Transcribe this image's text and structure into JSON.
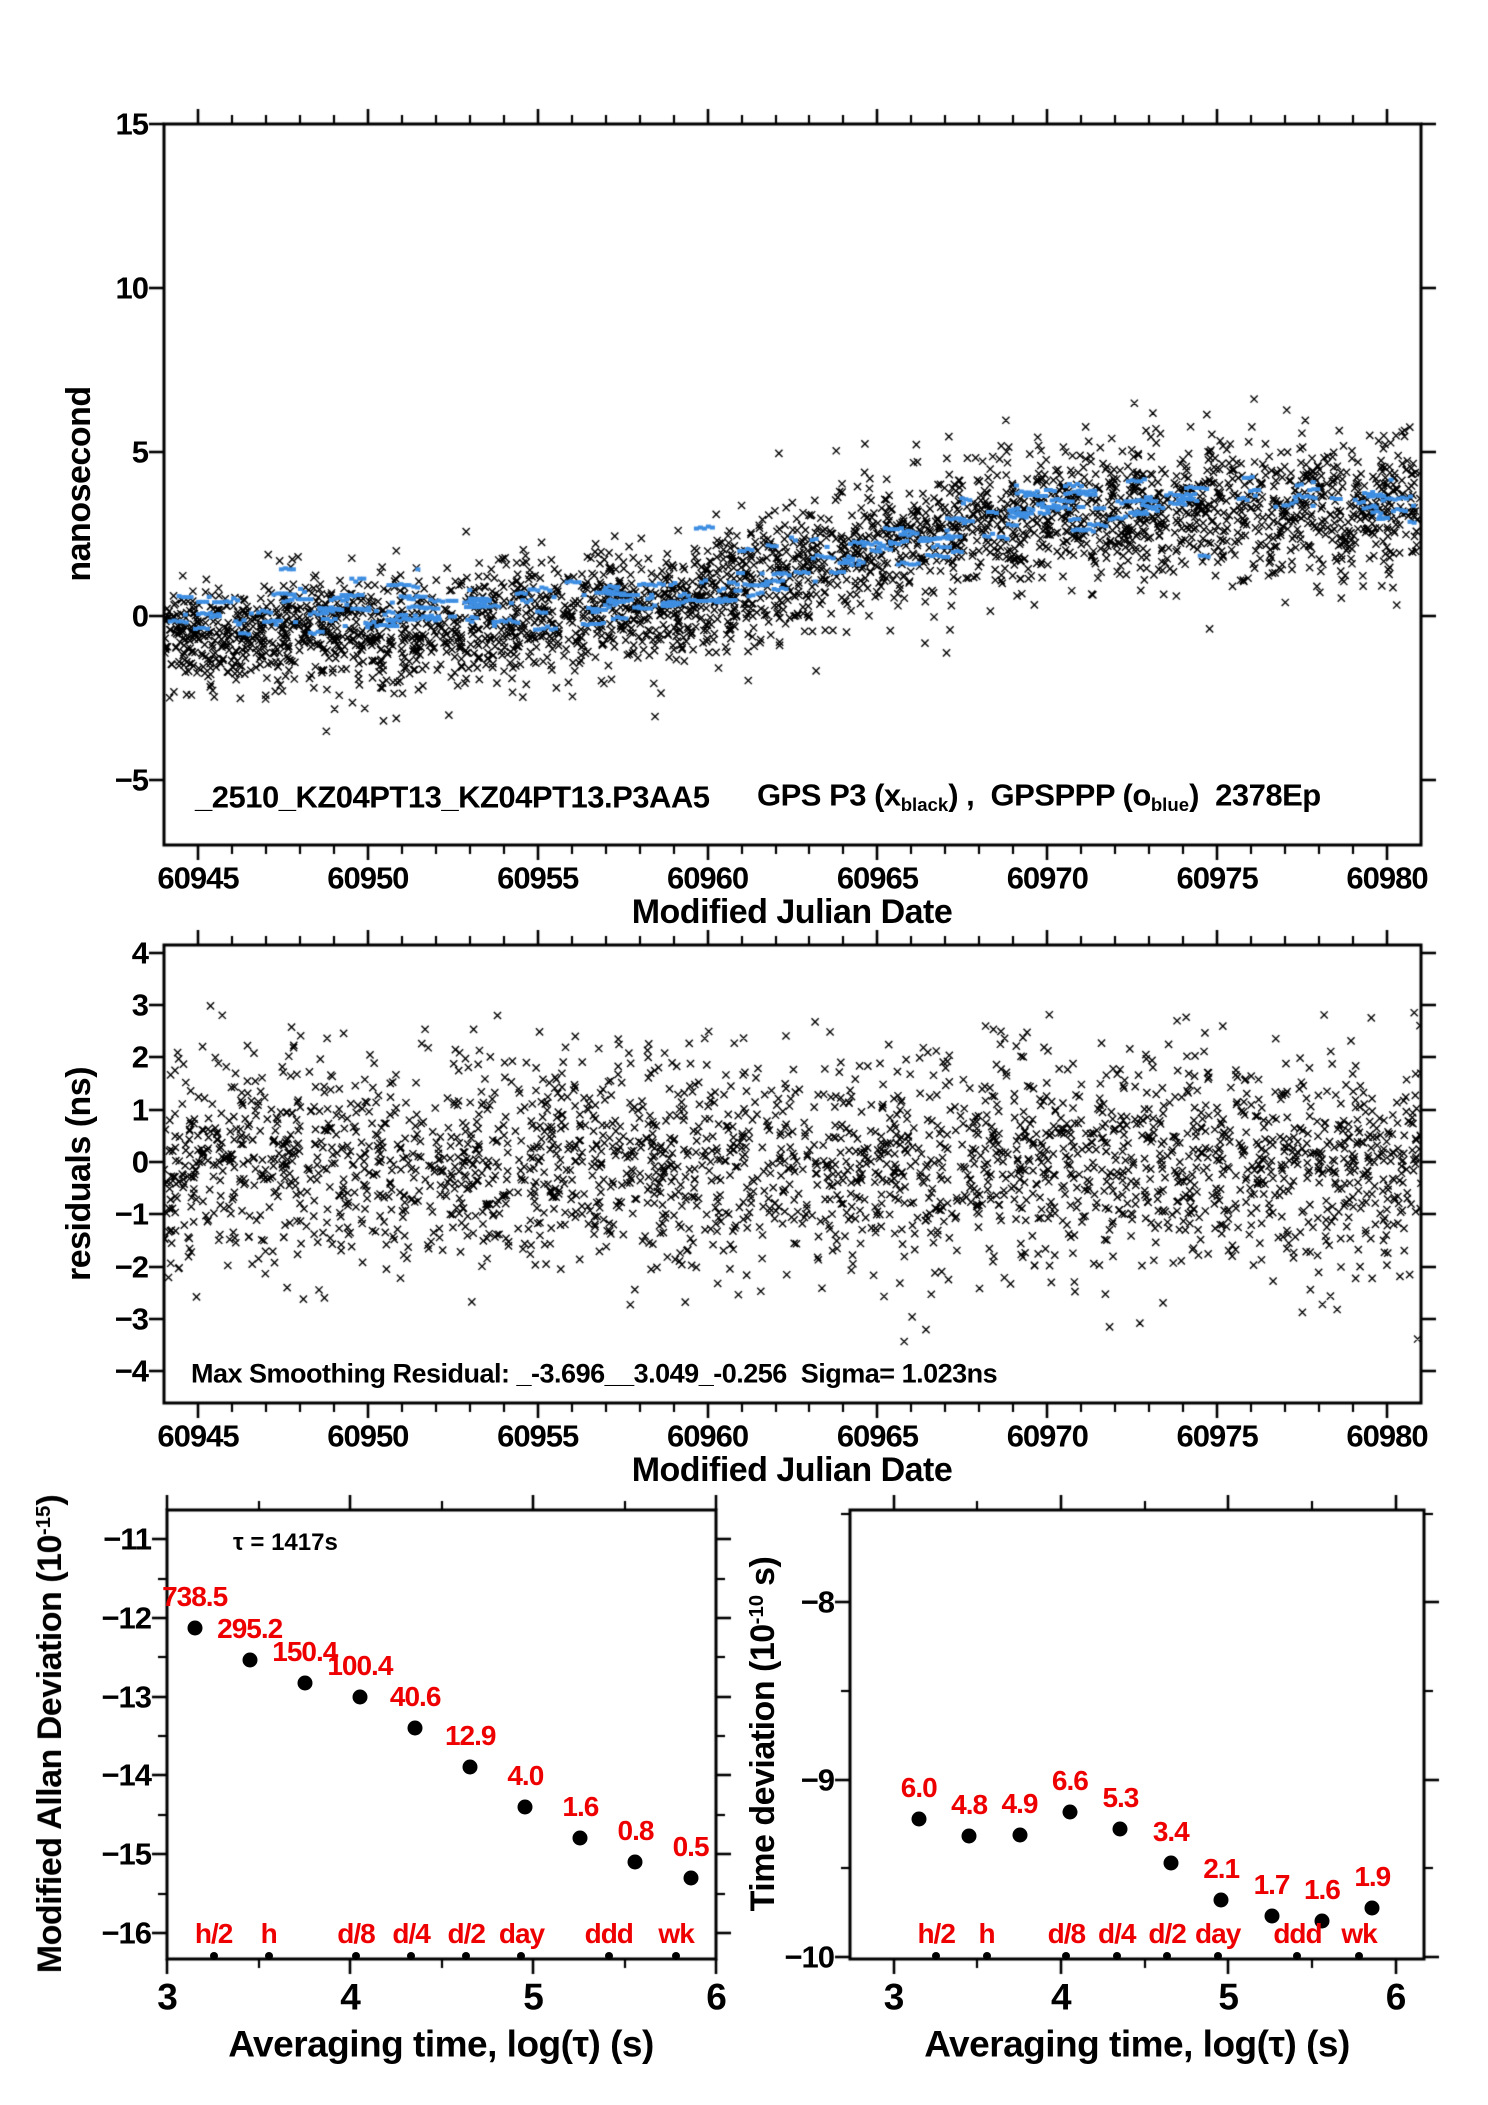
{
  "colors": {
    "scatter_black": "#000000",
    "scatter_blue": "#3E8EE2",
    "label_red": "#EE0000",
    "axis_black": "#000000",
    "background": "#FFFFFF"
  },
  "chart_data": [
    {
      "type": "scatter",
      "panel": "top",
      "ylabel": "nanosecond",
      "xlabel": "Modified Julian Date",
      "title_parts": {
        "left": "_2510_KZ04PT13_KZ04PT13.P3AA5",
        "gps": "GPS P3 (x",
        "sub1": "black",
        "mid": ") ,  GPSPPP (o",
        "sub2": "blue",
        "right": ")  2378Ep"
      },
      "xlim": [
        60944,
        60981
      ],
      "ylim": [
        -6.98,
        15
      ],
      "x_tick_labels": [
        "60945",
        "60950",
        "60955",
        "60960",
        "60965",
        "60970",
        "60975",
        "60980"
      ],
      "x_tick_values": [
        60945,
        60950,
        60955,
        60960,
        60965,
        60970,
        60975,
        60980
      ],
      "y_tick_labels": [
        "15",
        "10",
        "5",
        "0",
        "−5"
      ],
      "y_tick_values": [
        15,
        10,
        5,
        0,
        -5
      ],
      "series": [
        {
          "name": "GPS P3 (x black)",
          "marker": "x",
          "color": "#000000",
          "n_points": 3200,
          "noise_sigma": 0.9,
          "seed": 101,
          "trend": [
            [
              60944,
              -0.6
            ],
            [
              60948,
              -0.5
            ],
            [
              60952,
              -0.4
            ],
            [
              60956,
              -0.1
            ],
            [
              60958,
              0.15
            ],
            [
              60960,
              0.55
            ],
            [
              60962,
              1.15
            ],
            [
              60964,
              1.85
            ],
            [
              60966,
              2.4
            ],
            [
              60968,
              2.85
            ],
            [
              60970,
              3.05
            ],
            [
              60973,
              3.25
            ],
            [
              60976,
              3.25
            ],
            [
              60979,
              3.35
            ],
            [
              60981,
              3.4
            ]
          ]
        },
        {
          "name": "GPSPPP (o blue)",
          "marker": "dash",
          "color": "#3E8EE2",
          "n_runs": 250,
          "noise_sigma": 0.45,
          "seed": 202,
          "trend": [
            [
              60944,
              0.15
            ],
            [
              60950,
              0.3
            ],
            [
              60956,
              0.5
            ],
            [
              60959,
              0.75
            ],
            [
              60962,
              1.35
            ],
            [
              60965,
              2.15
            ],
            [
              60968,
              3.0
            ],
            [
              60971,
              3.4
            ],
            [
              60975,
              3.6
            ],
            [
              60978,
              3.5
            ],
            [
              60981,
              3.6
            ]
          ]
        }
      ]
    },
    {
      "type": "scatter",
      "panel": "middle",
      "ylabel": "residuals (ns)",
      "xlabel": "Modified Julian Date",
      "annotation": "Max Smoothing Residual: _-3.696__3.049_-0.256  Sigma= 1.023ns",
      "max_residual_low": -3.696,
      "max_residual_high": 3.049,
      "mean_residual": -0.256,
      "sigma_ns": 1.023,
      "xlim": [
        60944,
        60981
      ],
      "ylim": [
        -4.61,
        4.15
      ],
      "x_tick_labels": [
        "60945",
        "60950",
        "60955",
        "60960",
        "60965",
        "60970",
        "60975",
        "60980"
      ],
      "x_tick_values": [
        60945,
        60950,
        60955,
        60960,
        60965,
        60970,
        60975,
        60980
      ],
      "y_tick_labels": [
        "4",
        "3",
        "2",
        "1",
        "0",
        "−1",
        "−2",
        "−3",
        "−4"
      ],
      "y_tick_values": [
        4,
        3,
        2,
        1,
        0,
        -1,
        -2,
        -3,
        -4
      ],
      "series": [
        {
          "name": "smoothing residuals",
          "marker": "x",
          "color": "#000000",
          "n_points": 2600,
          "mean": 0,
          "noise_sigma": 1.023,
          "clip_min": -3.696,
          "clip_max": 3.049,
          "seed": 303
        }
      ]
    },
    {
      "type": "scatter",
      "panel": "bottom-left",
      "ylabel_main": "Modified Allan Deviation (10",
      "ylabel_sup": "-15",
      "ylabel_end": ")",
      "xlabel": "Averaging time, log(τ) (s)",
      "tau_note": "τ = 1417s",
      "xlim": [
        3,
        6
      ],
      "ylim": [
        -16.33,
        -10.63
      ],
      "x_tick_labels": [
        "3",
        "4",
        "5",
        "6"
      ],
      "x_tick_values": [
        3,
        4,
        5,
        6
      ],
      "y_tick_labels": [
        "−11",
        "−12",
        "−13",
        "−14",
        "−15",
        "−16"
      ],
      "y_tick_values": [
        -11,
        -12,
        -13,
        -14,
        -15,
        -16
      ],
      "log_tau": [
        3.151,
        3.452,
        3.753,
        4.054,
        4.356,
        4.657,
        4.958,
        5.259,
        5.56,
        5.861
      ],
      "mdev_1e15": [
        738.5,
        295.2,
        150.4,
        100.4,
        40.6,
        12.9,
        4.0,
        1.6,
        0.8,
        0.5
      ],
      "point_labels": [
        "738.5",
        "295.2",
        "150.4",
        "100.4",
        "40.6",
        "12.9",
        "4.0",
        "1.6",
        "0.8",
        "0.5"
      ],
      "time_marks": {
        "labels": [
          "h/2",
          "h",
          "d/8",
          "d/4",
          "d/2",
          "day",
          "ddd",
          "wk"
        ],
        "log_tau": [
          3.255,
          3.556,
          4.033,
          4.334,
          4.635,
          4.937,
          5.414,
          5.782
        ]
      }
    },
    {
      "type": "scatter",
      "panel": "bottom-right",
      "ylabel_main": "Time deviation (10",
      "ylabel_sup": "-10",
      "ylabel_end": " s)",
      "xlabel": "Averaging time, log(τ) (s)",
      "xlim": [
        2.74,
        6.17
      ],
      "ylim": [
        -10.01,
        -7.48
      ],
      "x_tick_labels": [
        "3",
        "4",
        "5",
        "6"
      ],
      "x_tick_values": [
        3,
        4,
        5,
        6
      ],
      "y_tick_labels": [
        "−8",
        "−9",
        "−10"
      ],
      "y_tick_values": [
        -8,
        -9,
        -10
      ],
      "log_tau": [
        3.151,
        3.452,
        3.753,
        4.054,
        4.356,
        4.657,
        4.958,
        5.259,
        5.56,
        5.861
      ],
      "tdev_1e10": [
        6.0,
        4.8,
        4.9,
        6.6,
        5.3,
        3.4,
        2.1,
        1.7,
        1.6,
        1.9
      ],
      "point_labels": [
        "6.0",
        "4.8",
        "4.9",
        "6.6",
        "5.3",
        "3.4",
        "2.1",
        "1.7",
        "1.6",
        "1.9"
      ],
      "time_marks": {
        "labels": [
          "h/2",
          "h",
          "d/8",
          "d/4",
          "d/2",
          "day",
          "ddd",
          "wk"
        ],
        "log_tau": [
          3.255,
          3.556,
          4.033,
          4.334,
          4.635,
          4.937,
          5.414,
          5.782
        ]
      }
    }
  ]
}
